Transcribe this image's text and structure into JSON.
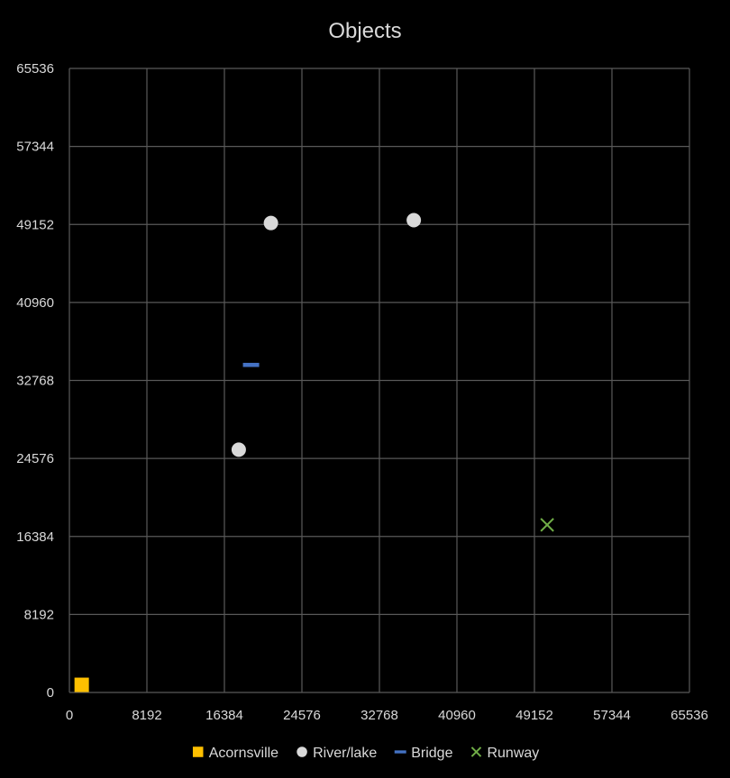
{
  "chart_data": {
    "type": "scatter",
    "title": "Objects",
    "xlabel": "",
    "ylabel": "",
    "xlim": [
      0,
      65536
    ],
    "ylim": [
      0,
      65536
    ],
    "x_ticks": [
      "0",
      "8192",
      "16384",
      "24576",
      "32768",
      "40960",
      "49152",
      "57344",
      "65536"
    ],
    "y_ticks": [
      "0",
      "8192",
      "16384",
      "24576",
      "32768",
      "40960",
      "49152",
      "57344",
      "65536"
    ],
    "grid": true,
    "legend_position": "bottom",
    "series": [
      {
        "name": "Acornsville",
        "marker": "square",
        "color": "#ffc000",
        "points": [
          [
            1300,
            800
          ]
        ]
      },
      {
        "name": "River/lake",
        "marker": "circle",
        "color": "#d9d9d9",
        "points": [
          [
            21300,
            49300
          ],
          [
            17900,
            25500
          ],
          [
            36400,
            49600
          ]
        ]
      },
      {
        "name": "Bridge",
        "marker": "dash",
        "color": "#4472c4",
        "points": [
          [
            19200,
            34400
          ]
        ]
      },
      {
        "name": "Runway",
        "marker": "x",
        "color": "#70ad47",
        "points": [
          [
            50500,
            17600
          ]
        ]
      }
    ]
  },
  "colors": {
    "background": "#000000",
    "grid": "#595959",
    "text": "#d9d9d9"
  }
}
